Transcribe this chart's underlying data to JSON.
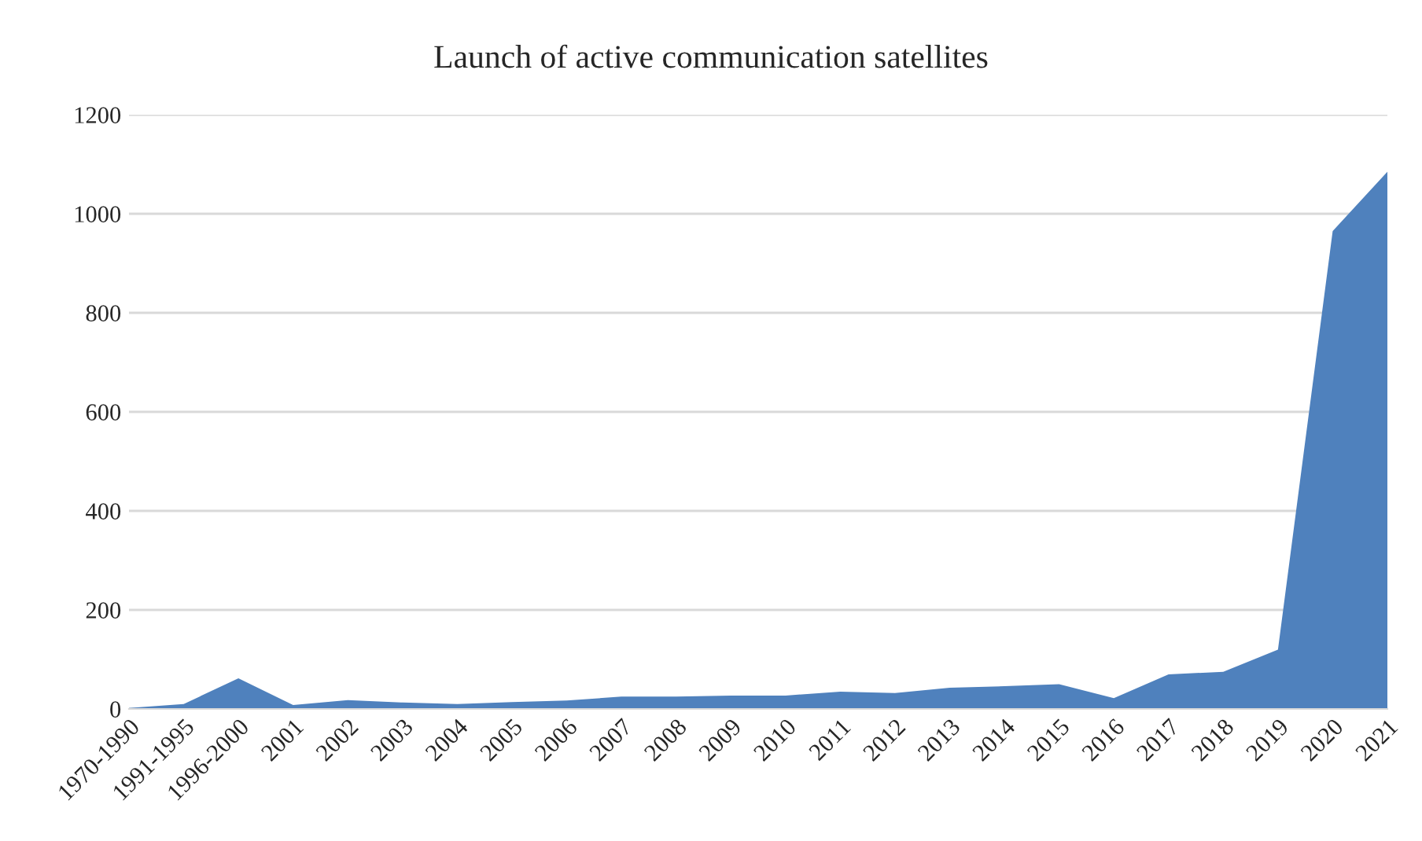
{
  "chart_data": {
    "type": "area",
    "title": "Launch of active communication satellites",
    "categories": [
      "1970-1990",
      "1991-1995",
      "1996-2000",
      "2001",
      "2002",
      "2003",
      "2004",
      "2005",
      "2006",
      "2007",
      "2008",
      "2009",
      "2010",
      "2011",
      "2012",
      "2013",
      "2014",
      "2015",
      "2016",
      "2017",
      "2018",
      "2019",
      "2020",
      "2021"
    ],
    "series": [
      {
        "color": "#4f81bd",
        "values": [
          2,
          10,
          62,
          8,
          18,
          13,
          10,
          14,
          17,
          25,
          25,
          27,
          27,
          35,
          32,
          43,
          46,
          50,
          22,
          70,
          75,
          120,
          965,
          1085
        ]
      }
    ],
    "ylim": [
      0,
      1200
    ],
    "yticks": [
      0,
      200,
      400,
      600,
      800,
      1000,
      1200
    ],
    "grid": "y"
  }
}
